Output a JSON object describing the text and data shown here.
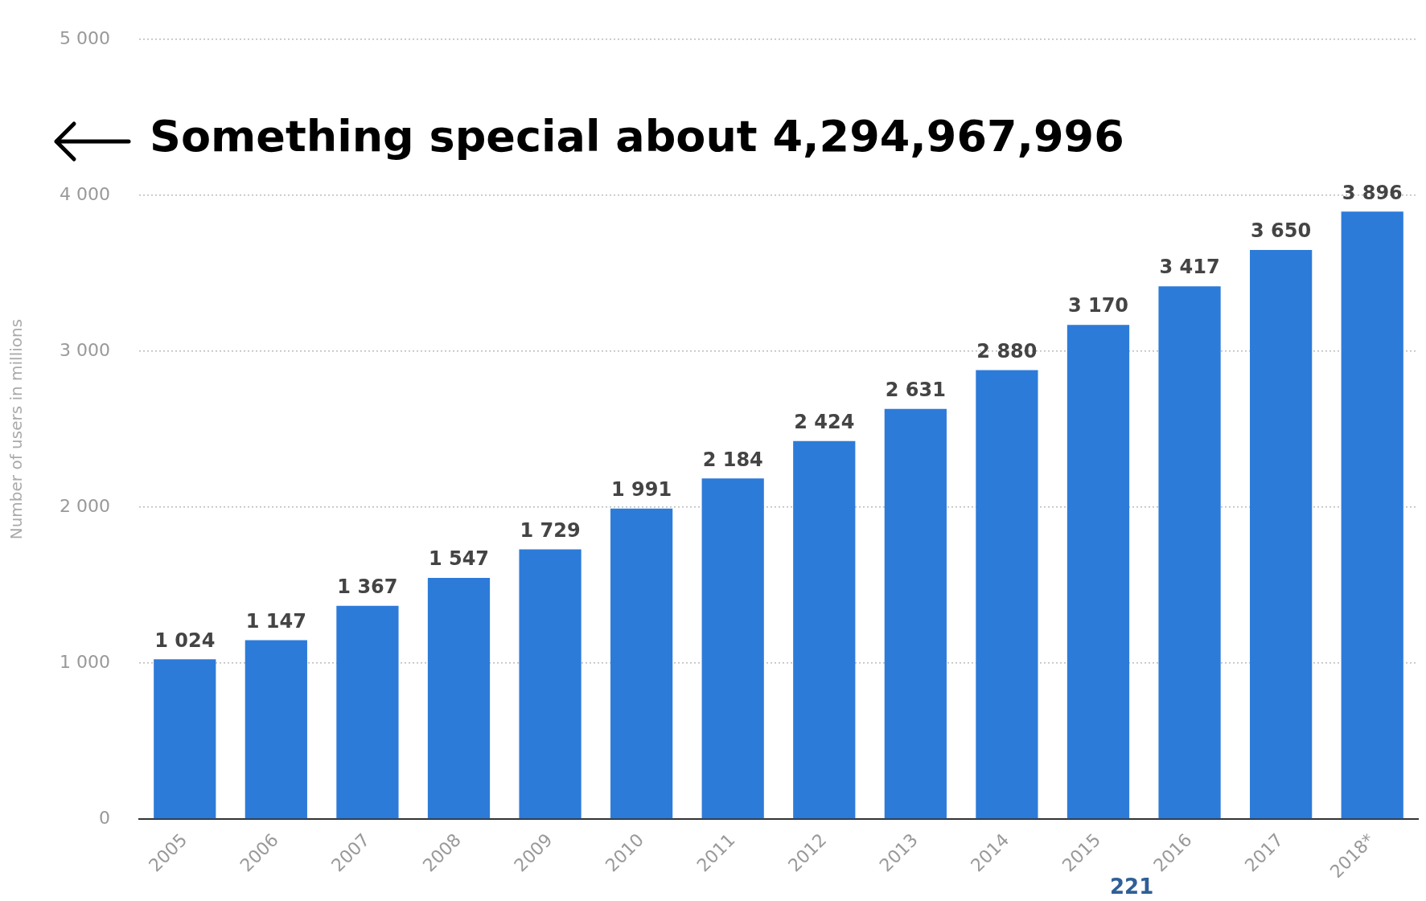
{
  "chart_data": {
    "type": "bar",
    "ylabel": "Number of users in millions",
    "categories": [
      "2005",
      "2006",
      "2007",
      "2008",
      "2009",
      "2010",
      "2011",
      "2012",
      "2013",
      "2014",
      "2015",
      "2016",
      "2017",
      "2018*"
    ],
    "values": [
      1024,
      1147,
      1367,
      1547,
      1729,
      1991,
      2184,
      2424,
      2631,
      2880,
      3170,
      3417,
      3650,
      3896
    ],
    "value_labels": [
      "1 024",
      "1 147",
      "1 367",
      "1 547",
      "1 729",
      "1 991",
      "2 184",
      "2 424",
      "2 631",
      "2 880",
      "3 170",
      "3 417",
      "3 650",
      "3 896"
    ],
    "color": "#2d7bd9",
    "ylim": [
      0,
      5000
    ],
    "yticks": [
      0,
      {
        "value": 1000,
        "label": "1 000"
      },
      {
        "value": 2000,
        "label": "2 000"
      },
      {
        "value": 3000,
        "label": "3 000"
      },
      {
        "value": 4000,
        "label": "4 000"
      },
      {
        "value": 5000,
        "label": "5 000"
      }
    ],
    "grid": "y",
    "legend": false,
    "annotations": [
      "Something special about 4,294,967,996",
      "221"
    ]
  }
}
